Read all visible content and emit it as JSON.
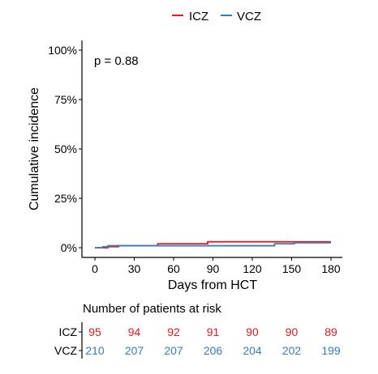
{
  "chart_data": {
    "type": "line",
    "step": true,
    "legend": {
      "placement": "top",
      "entries": [
        {
          "label": "ICZ",
          "color": "#e41a1c"
        },
        {
          "label": "VCZ",
          "color": "#377eb8"
        }
      ]
    },
    "annotation": "p = 0.88",
    "ylabel": "Cumulative incidence",
    "xlabel": "Days from HCT",
    "xlim": [
      0,
      180
    ],
    "ylim": [
      0,
      1
    ],
    "xticks": [
      0,
      30,
      60,
      90,
      120,
      150,
      180
    ],
    "xtick_labels": [
      "0",
      "30",
      "60",
      "90",
      "120",
      "150",
      "180"
    ],
    "yticks": [
      0,
      0.25,
      0.5,
      0.75,
      1.0
    ],
    "ytick_labels": [
      "0%",
      "25%",
      "50%",
      "75%",
      "100%"
    ],
    "grid": false,
    "series": [
      {
        "name": "ICZ",
        "color": "#e41a1c",
        "x": [
          0,
          10,
          18,
          48,
          86,
          180
        ],
        "y": [
          0,
          0.005,
          0.01,
          0.02,
          0.03,
          0.03
        ]
      },
      {
        "name": "VCZ",
        "color": "#377eb8",
        "x": [
          0,
          6,
          10,
          30,
          137,
          152,
          180
        ],
        "y": [
          0,
          0.005,
          0.01,
          0.01,
          0.02,
          0.025,
          0.025
        ]
      }
    ],
    "risk_table": {
      "title": "Number of patients at risk",
      "times": [
        0,
        30,
        60,
        90,
        120,
        150,
        180
      ],
      "rows": [
        {
          "label": "ICZ",
          "color": "#e41a1c",
          "values": [
            "95",
            "94",
            "92",
            "91",
            "90",
            "90",
            "89"
          ]
        },
        {
          "label": "VCZ",
          "color": "#377eb8",
          "values": [
            "210",
            "207",
            "207",
            "206",
            "204",
            "202",
            "199"
          ]
        }
      ]
    }
  }
}
